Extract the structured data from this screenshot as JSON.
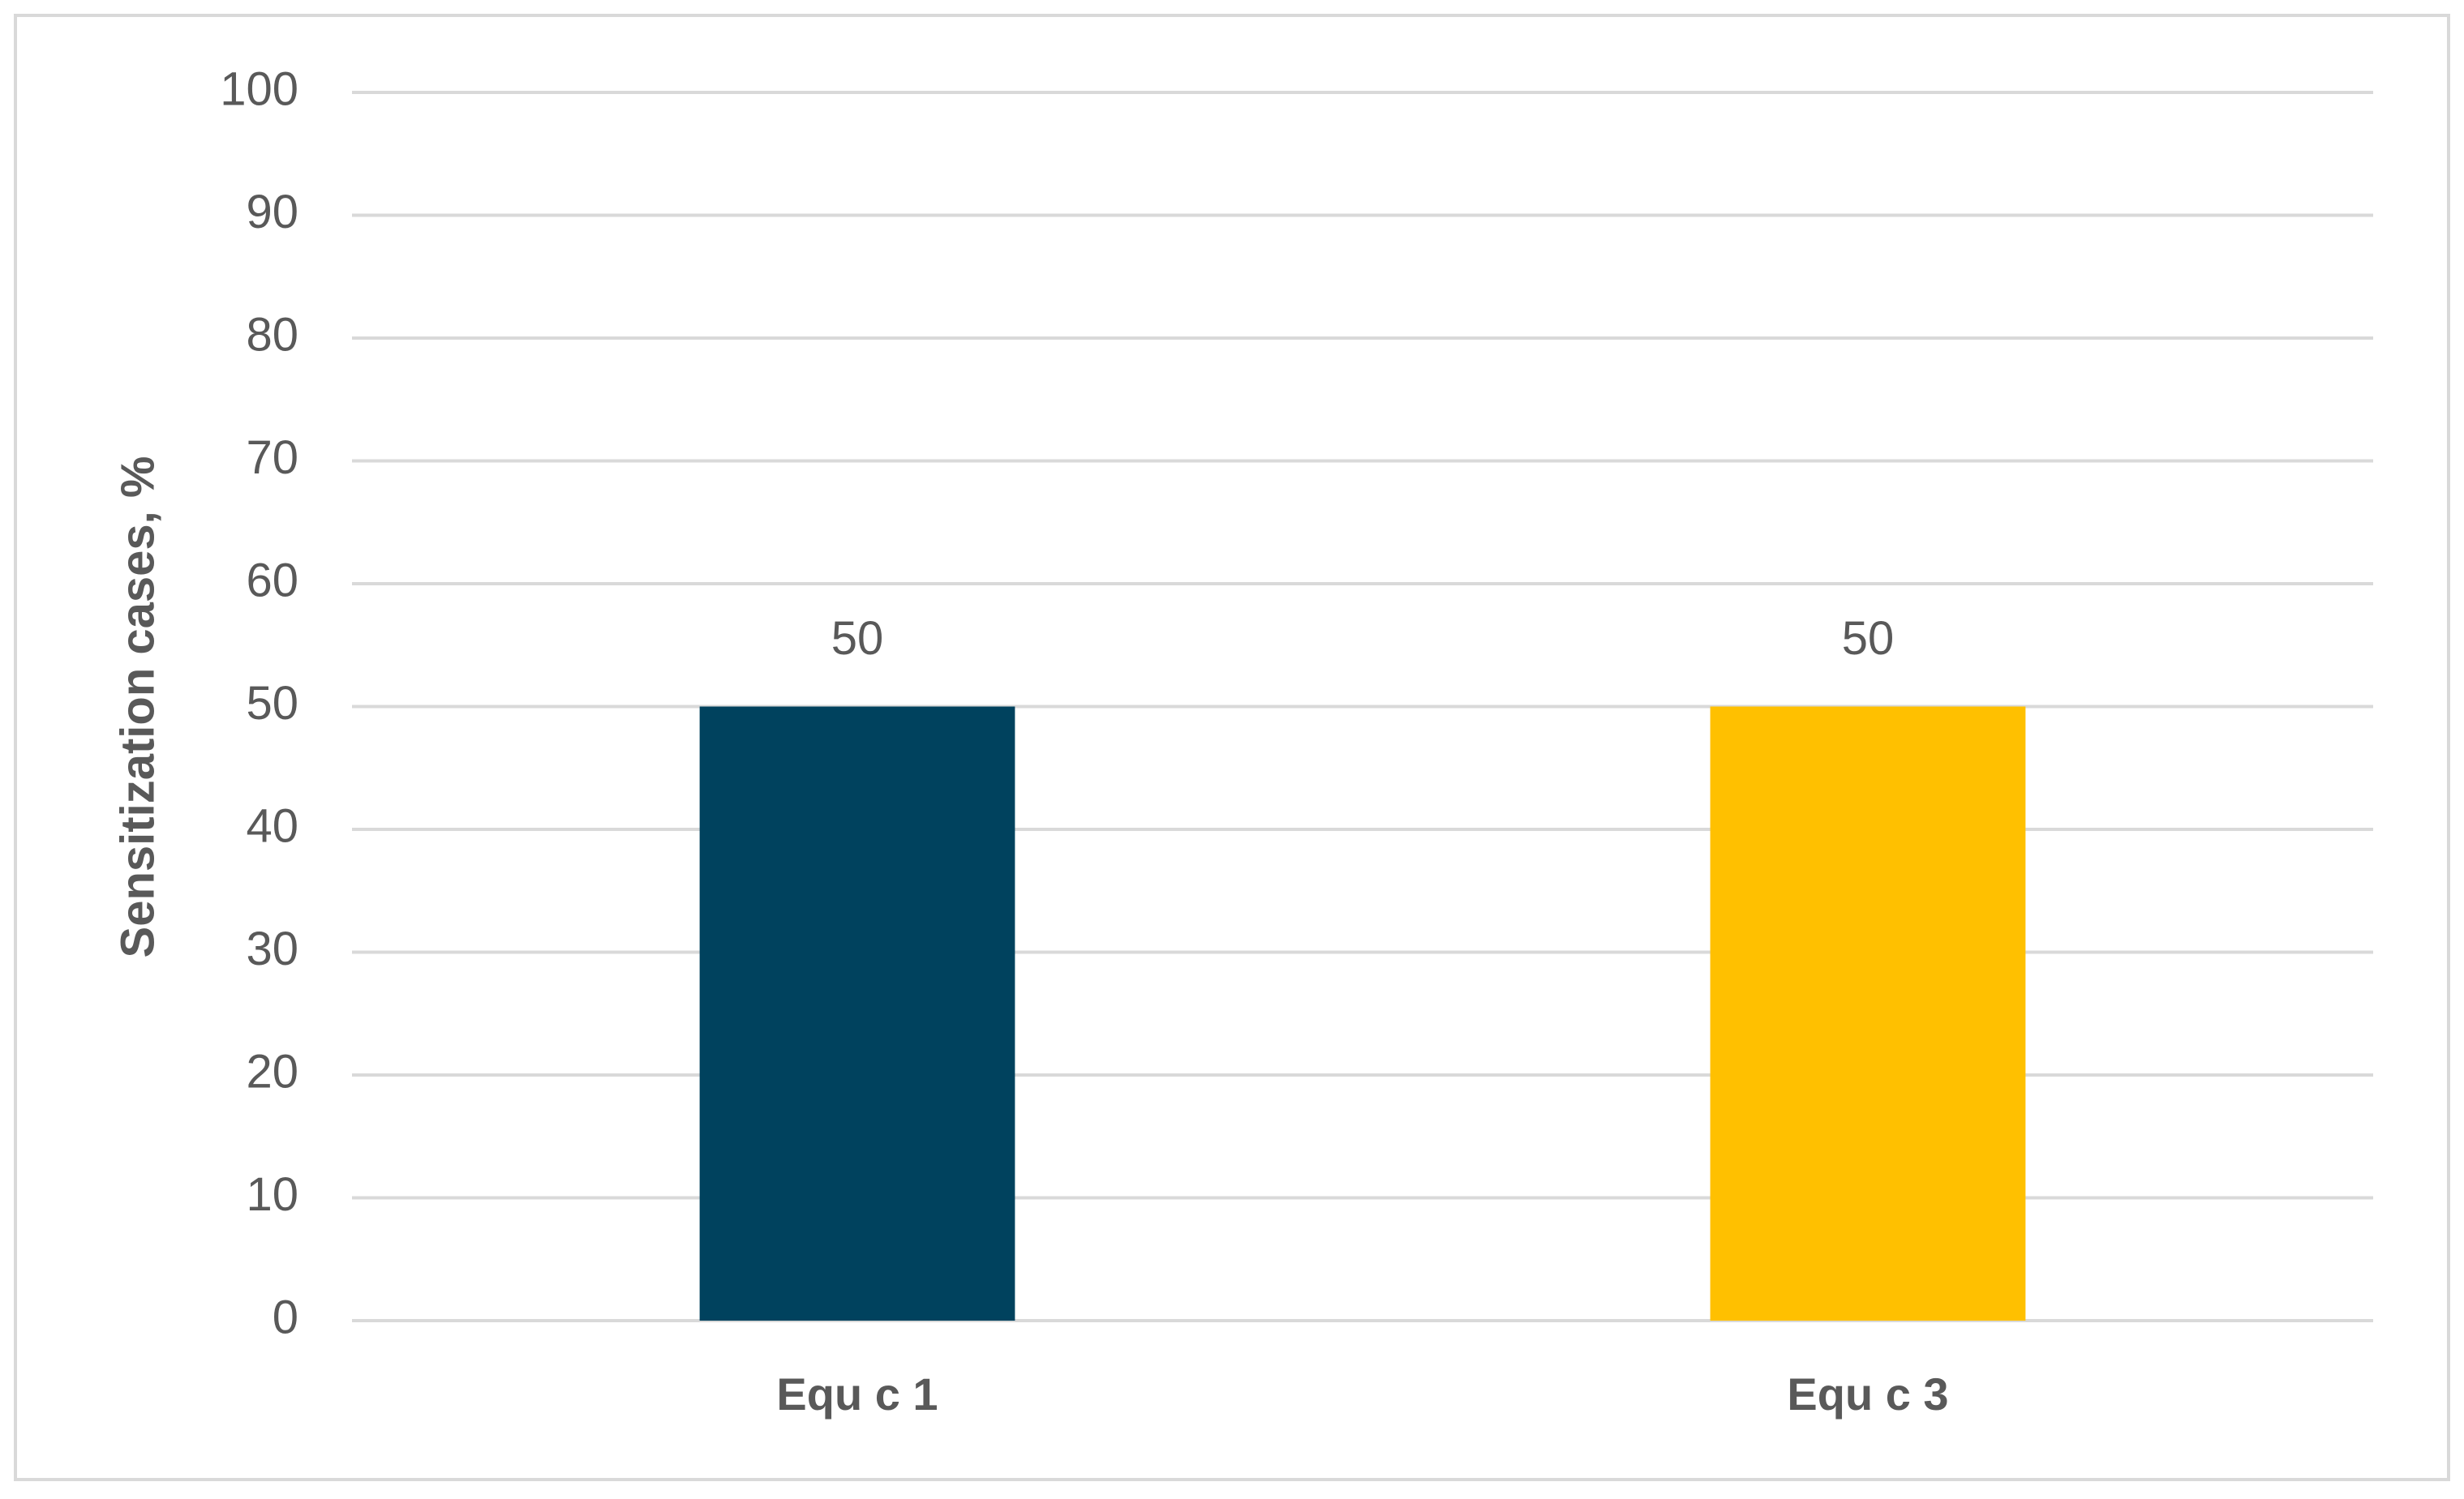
{
  "chart_data": {
    "type": "bar",
    "ylabel": "Sensitization cases, %",
    "categories": [
      "Equ c 1",
      "Equ c 3"
    ],
    "values": [
      50,
      50
    ],
    "colors": [
      "#00425e",
      "#ffc000"
    ],
    "ylim": [
      0,
      100
    ],
    "yticks": [
      0,
      10,
      20,
      30,
      40,
      50,
      60,
      70,
      80,
      90,
      100
    ],
    "grid": true
  }
}
